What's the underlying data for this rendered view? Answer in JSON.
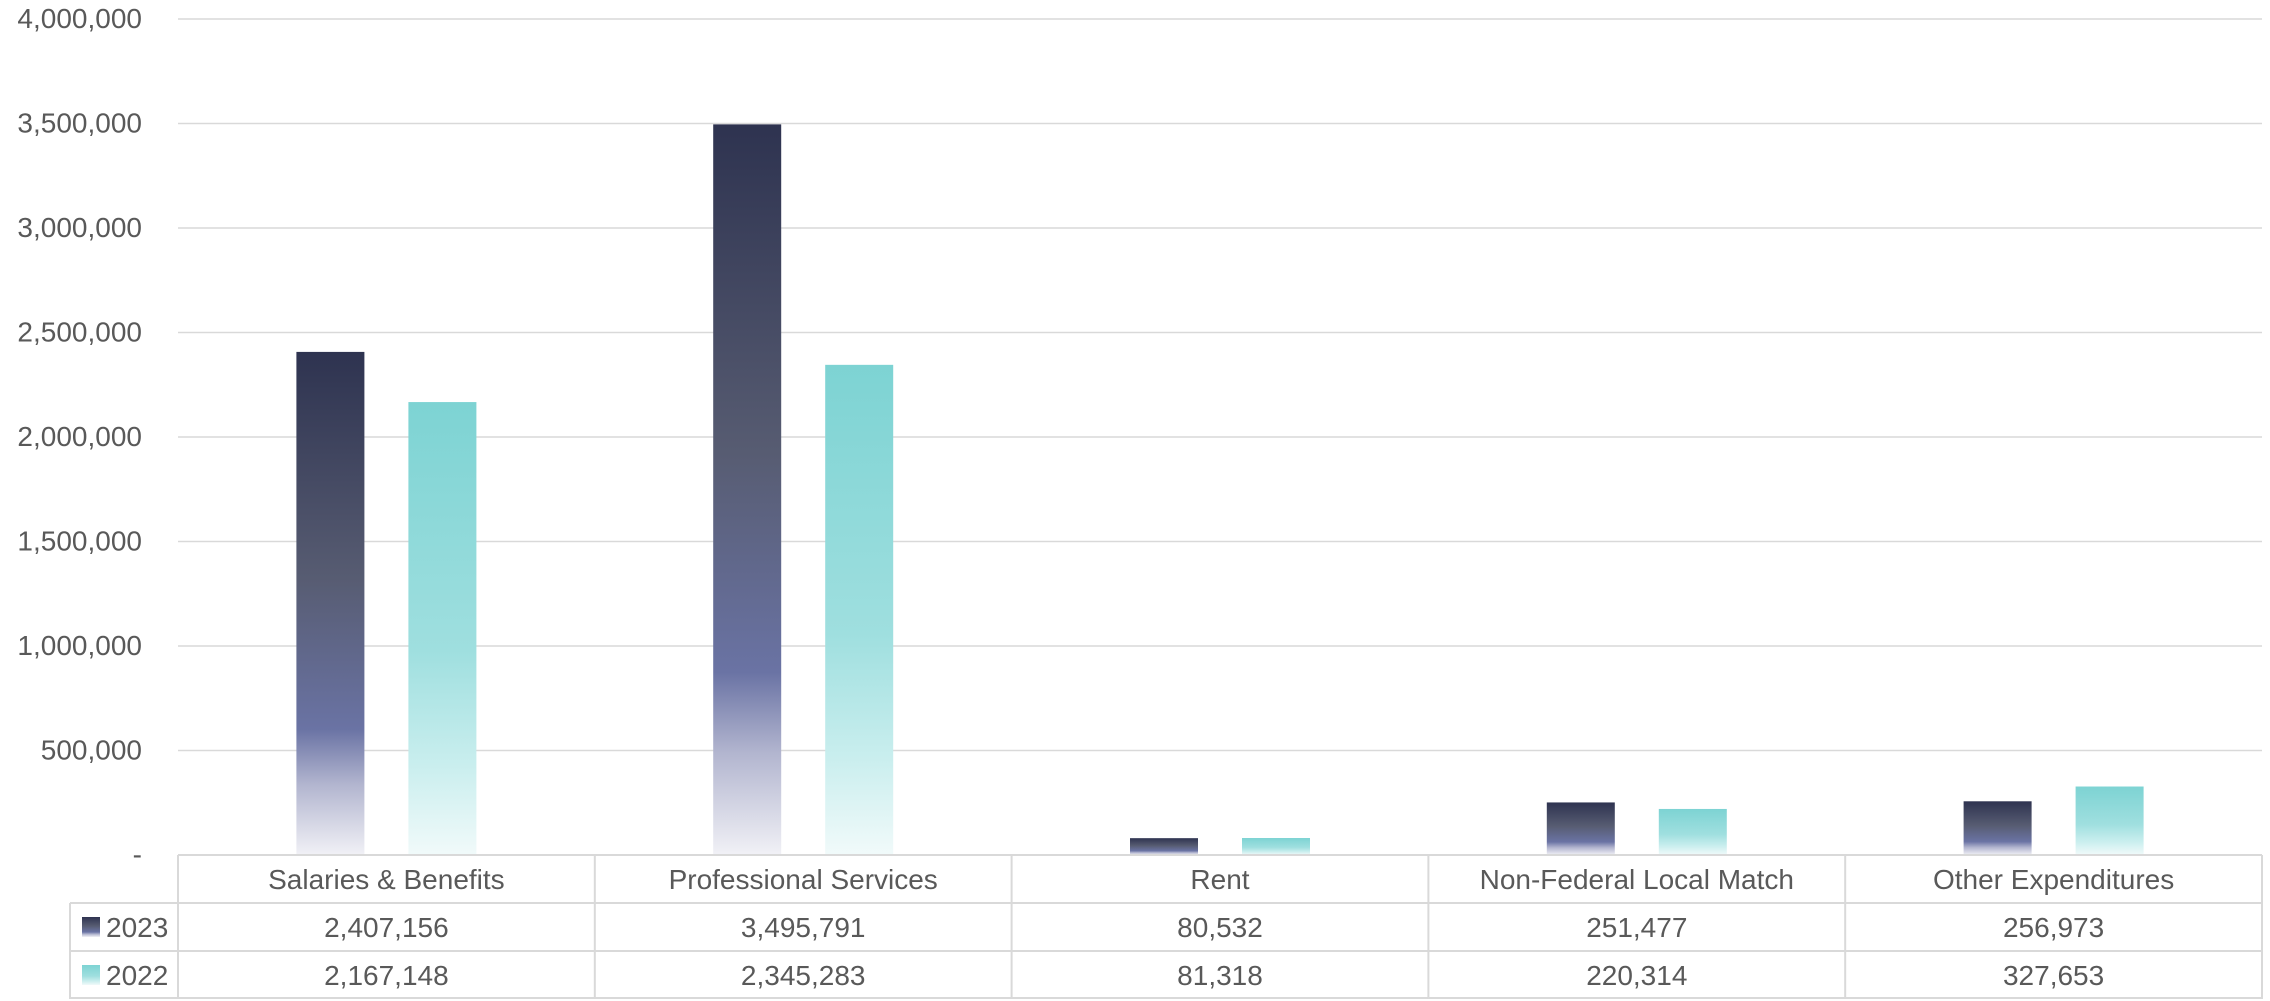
{
  "chart_data": {
    "type": "bar",
    "categories": [
      "Salaries & Benefits",
      "Professional Services",
      "Rent",
      "Non-Federal Local Match",
      "Other Expenditures"
    ],
    "series": [
      {
        "name": "2023",
        "values": [
          2407156,
          3495791,
          80532,
          251477,
          256973
        ],
        "labels": [
          "2,407,156",
          "3,495,791",
          "80,532",
          "251,477",
          "256,973"
        ],
        "color": "#2e3350"
      },
      {
        "name": "2022",
        "values": [
          2167148,
          2345283,
          81318,
          220314,
          327653
        ],
        "labels": [
          "2,167,148",
          "2,345,283",
          "81,318",
          "220,314",
          "327,653"
        ],
        "color": "#7dd3d3"
      }
    ],
    "yticks": [
      {
        "value": 0,
        "label": "-"
      },
      {
        "value": 500000,
        "label": "500,000"
      },
      {
        "value": 1000000,
        "label": "1,000,000"
      },
      {
        "value": 1500000,
        "label": "1,500,000"
      },
      {
        "value": 2000000,
        "label": "2,000,000"
      },
      {
        "value": 2500000,
        "label": "2,500,000"
      },
      {
        "value": 3000000,
        "label": "3,000,000"
      },
      {
        "value": 3500000,
        "label": "3,500,000"
      },
      {
        "value": 4000000,
        "label": "4,000,000"
      }
    ],
    "ylim": [
      0,
      4000000
    ],
    "grid": true,
    "legend": "data-table"
  }
}
